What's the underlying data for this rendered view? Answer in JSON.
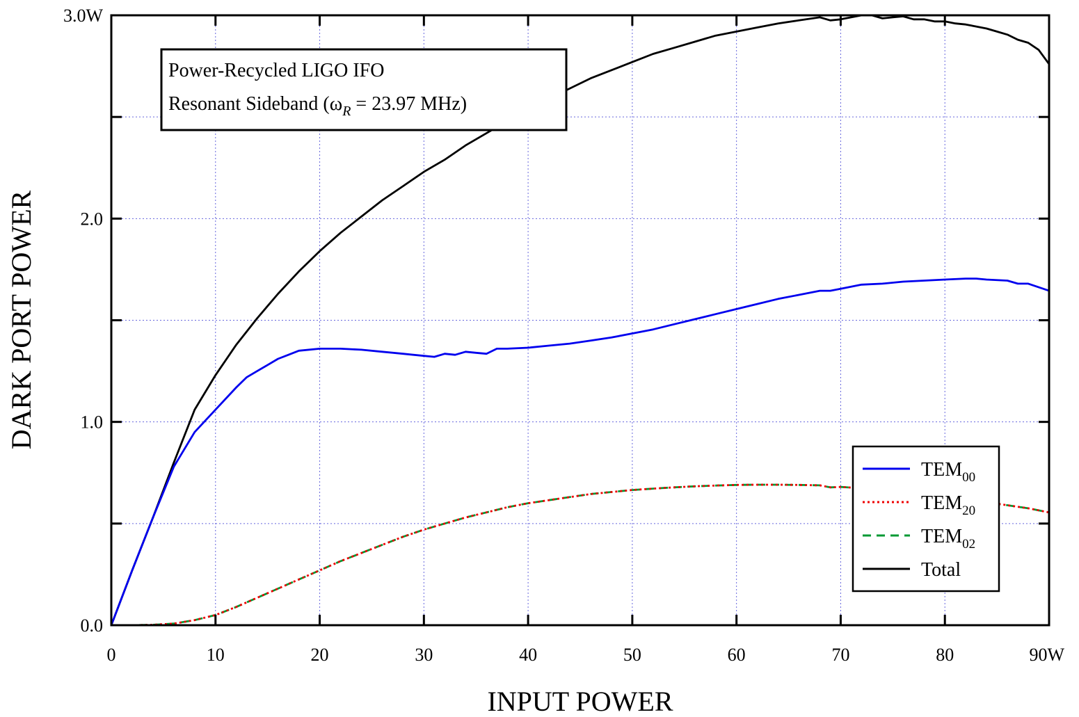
{
  "chart_data": {
    "type": "line",
    "title": "",
    "xlabel": "INPUT POWER",
    "ylabel": "DARK PORT POWER",
    "xlim": [
      0,
      90
    ],
    "ylim": [
      0,
      3
    ],
    "grid": true,
    "legend_position": "bottom-right",
    "x_ticks": [
      {
        "value": 0,
        "label": "0"
      },
      {
        "value": 10,
        "label": "10"
      },
      {
        "value": 20,
        "label": "20"
      },
      {
        "value": 30,
        "label": "30"
      },
      {
        "value": 40,
        "label": "40"
      },
      {
        "value": 50,
        "label": "50"
      },
      {
        "value": 60,
        "label": "60"
      },
      {
        "value": 70,
        "label": "70"
      },
      {
        "value": 80,
        "label": "80"
      },
      {
        "value": 90,
        "label": "90W"
      }
    ],
    "y_ticks": [
      {
        "value": 0,
        "label": "0.0"
      },
      {
        "value": 0.5,
        "label": ""
      },
      {
        "value": 1,
        "label": "1.0"
      },
      {
        "value": 1.5,
        "label": ""
      },
      {
        "value": 2,
        "label": "2.0"
      },
      {
        "value": 2.5,
        "label": ""
      },
      {
        "value": 3,
        "label": "3.0W"
      }
    ],
    "annotation": {
      "line1": "Power-Recycled LIGO IFO",
      "line2_prefix": "Resonant Sideband (",
      "line2_symbol": "ω",
      "line2_sub": "R",
      "line2_suffix": " = 23.97 MHz)"
    },
    "series": [
      {
        "name": "TEM",
        "name_sub": "00",
        "color": "#0000ee",
        "dash": "solid",
        "x": [
          0,
          2,
          4,
          6,
          8,
          10,
          12,
          13,
          14,
          15,
          16,
          17,
          18,
          20,
          22,
          24,
          26,
          28,
          30,
          31,
          32,
          33,
          34,
          35,
          36,
          37,
          38,
          40,
          42,
          44,
          46,
          48,
          50,
          52,
          54,
          56,
          58,
          60,
          62,
          64,
          66,
          68,
          69,
          70,
          72,
          74,
          76,
          78,
          80,
          82,
          83,
          84,
          86,
          87,
          88,
          90
        ],
        "y": [
          0,
          0.27,
          0.53,
          0.78,
          0.95,
          1.06,
          1.17,
          1.22,
          1.25,
          1.28,
          1.31,
          1.33,
          1.35,
          1.36,
          1.36,
          1.355,
          1.345,
          1.335,
          1.325,
          1.32,
          1.335,
          1.33,
          1.345,
          1.34,
          1.335,
          1.36,
          1.36,
          1.365,
          1.375,
          1.385,
          1.4,
          1.415,
          1.435,
          1.455,
          1.48,
          1.505,
          1.53,
          1.555,
          1.58,
          1.605,
          1.625,
          1.645,
          1.645,
          1.655,
          1.675,
          1.68,
          1.69,
          1.695,
          1.7,
          1.705,
          1.705,
          1.7,
          1.695,
          1.68,
          1.68,
          1.645
        ]
      },
      {
        "name": "TEM",
        "name_sub": "20",
        "color": "#ee0000",
        "dash": "dotted",
        "x": [
          0,
          2,
          4,
          6,
          8,
          10,
          12,
          14,
          16,
          18,
          20,
          22,
          24,
          26,
          28,
          30,
          32,
          34,
          36,
          38,
          40,
          42,
          44,
          46,
          48,
          50,
          52,
          54,
          56,
          58,
          60,
          62,
          64,
          66,
          68,
          69,
          70,
          72,
          74,
          76,
          78,
          80,
          82,
          84,
          86,
          88,
          90
        ],
        "y": [
          0,
          0,
          0.002,
          0.008,
          0.025,
          0.05,
          0.09,
          0.135,
          0.18,
          0.225,
          0.27,
          0.315,
          0.355,
          0.395,
          0.435,
          0.47,
          0.5,
          0.53,
          0.555,
          0.58,
          0.6,
          0.615,
          0.63,
          0.645,
          0.655,
          0.665,
          0.672,
          0.678,
          0.683,
          0.687,
          0.69,
          0.691,
          0.691,
          0.69,
          0.688,
          0.678,
          0.68,
          0.674,
          0.666,
          0.656,
          0.645,
          0.633,
          0.62,
          0.605,
          0.59,
          0.575,
          0.555
        ]
      },
      {
        "name": "TEM",
        "name_sub": "02",
        "color": "#009933",
        "dash": "dashed",
        "x": [
          0,
          2,
          4,
          6,
          8,
          10,
          12,
          14,
          16,
          18,
          20,
          22,
          24,
          26,
          28,
          30,
          32,
          34,
          36,
          38,
          40,
          42,
          44,
          46,
          48,
          50,
          52,
          54,
          56,
          58,
          60,
          62,
          64,
          66,
          68,
          69,
          70,
          72,
          74,
          76,
          78,
          80,
          82,
          84,
          86,
          88,
          90
        ],
        "y": [
          0,
          0,
          0.002,
          0.008,
          0.025,
          0.05,
          0.09,
          0.135,
          0.18,
          0.225,
          0.27,
          0.315,
          0.355,
          0.395,
          0.435,
          0.47,
          0.5,
          0.53,
          0.555,
          0.58,
          0.6,
          0.615,
          0.63,
          0.645,
          0.655,
          0.665,
          0.672,
          0.678,
          0.683,
          0.687,
          0.69,
          0.691,
          0.691,
          0.69,
          0.688,
          0.678,
          0.68,
          0.674,
          0.666,
          0.656,
          0.645,
          0.633,
          0.62,
          0.605,
          0.59,
          0.575,
          0.555
        ]
      },
      {
        "name": "Total",
        "name_sub": "",
        "color": "#000000",
        "dash": "solid",
        "x": [
          0,
          2,
          4,
          6,
          8,
          10,
          12,
          14,
          16,
          18,
          20,
          22,
          24,
          26,
          28,
          30,
          31,
          32,
          34,
          36,
          38,
          40,
          42,
          44,
          46,
          48,
          50,
          52,
          54,
          56,
          58,
          60,
          62,
          64,
          66,
          68,
          69,
          70,
          71,
          72,
          73,
          74,
          75,
          76,
          77,
          78,
          79,
          80,
          81,
          82,
          83,
          84,
          85,
          86,
          87,
          88,
          89,
          90
        ],
        "y": [
          0,
          0.27,
          0.53,
          0.8,
          1.06,
          1.23,
          1.38,
          1.51,
          1.63,
          1.74,
          1.84,
          1.93,
          2.01,
          2.09,
          2.16,
          2.23,
          2.26,
          2.29,
          2.36,
          2.42,
          2.48,
          2.54,
          2.59,
          2.64,
          2.69,
          2.73,
          2.77,
          2.81,
          2.84,
          2.87,
          2.9,
          2.92,
          2.94,
          2.96,
          2.975,
          2.99,
          2.975,
          2.98,
          2.99,
          3.0,
          3.0,
          2.985,
          2.99,
          2.995,
          2.98,
          2.98,
          2.97,
          2.97,
          2.96,
          2.955,
          2.945,
          2.935,
          2.92,
          2.905,
          2.88,
          2.865,
          2.83,
          2.76
        ]
      }
    ]
  }
}
